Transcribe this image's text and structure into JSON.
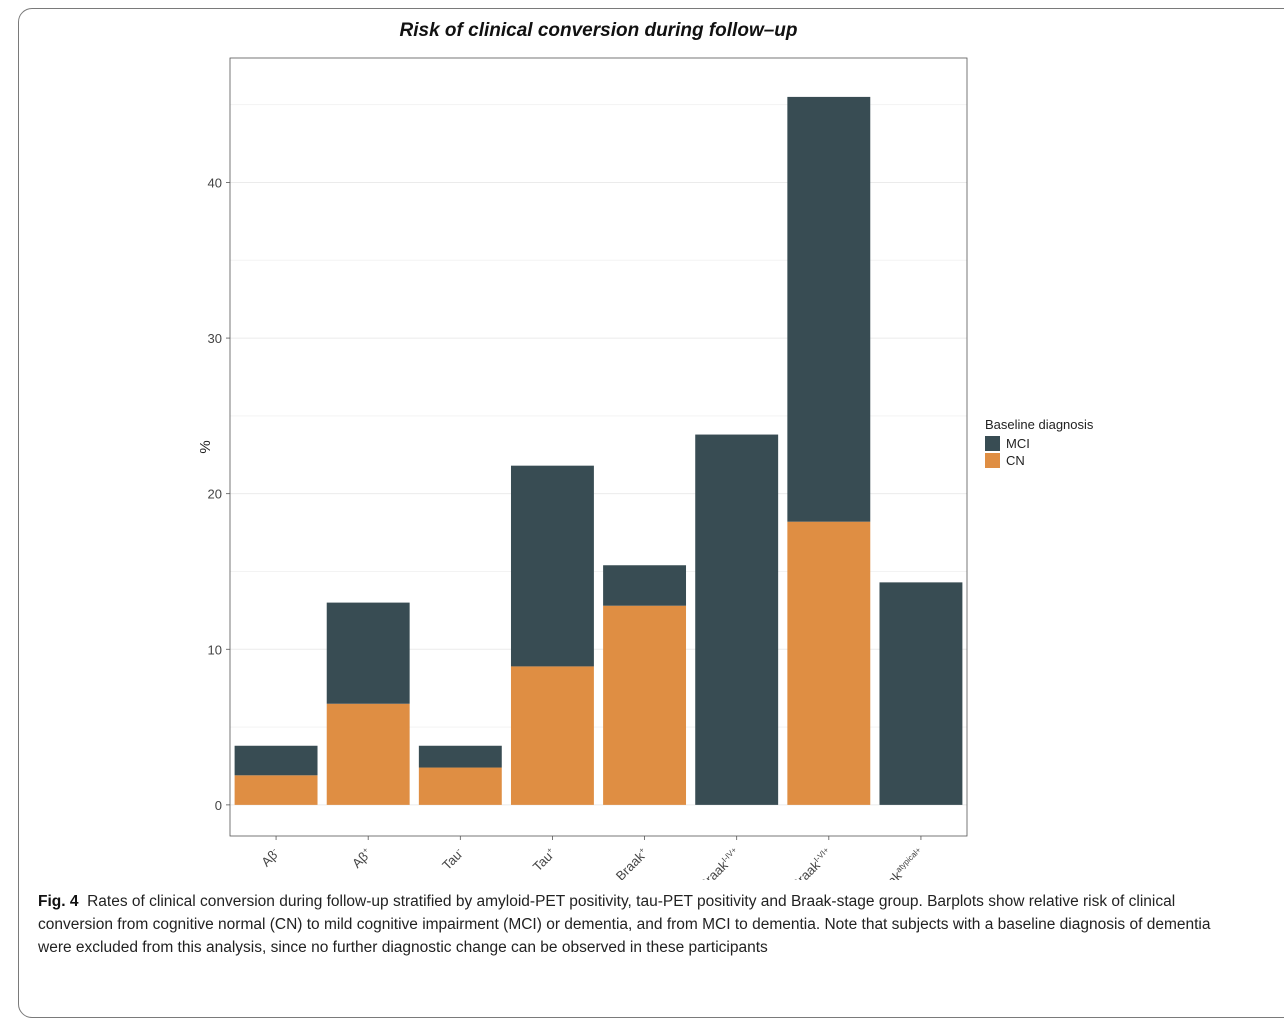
{
  "chart_data": {
    "type": "bar",
    "stacked": true,
    "title": "Risk of clinical conversion during follow–up",
    "xlabel": "",
    "ylabel": "%",
    "ylim": [
      -2,
      48
    ],
    "yticks": [
      0,
      10,
      20,
      30,
      40
    ],
    "grid": true,
    "legend_position": "right",
    "categories": [
      {
        "base": "Aβ",
        "sup": "-"
      },
      {
        "base": "Aβ",
        "sup": "+"
      },
      {
        "base": "Tau",
        "sup": "-"
      },
      {
        "base": "Tau",
        "sup": "+"
      },
      {
        "base": "Braak",
        "sup": "+"
      },
      {
        "base": "Braak",
        "sup": "I-IV+"
      },
      {
        "base": "Braak",
        "sup": "I-VI+"
      },
      {
        "base": "Braak",
        "sup": "atypical+"
      }
    ],
    "series": [
      {
        "name": "CN",
        "color": "#df8e43",
        "values": [
          1.9,
          6.5,
          2.4,
          8.9,
          12.8,
          0,
          18.2,
          0
        ]
      },
      {
        "name": "MCI",
        "color": "#384c53",
        "values": [
          1.9,
          6.5,
          1.4,
          12.9,
          2.6,
          23.8,
          27.3,
          14.3
        ]
      }
    ],
    "legend": {
      "title": "Baseline diagnosis",
      "items": [
        {
          "label": "MCI",
          "color": "#384c53"
        },
        {
          "label": "CN",
          "color": "#df8e43"
        }
      ]
    }
  },
  "caption": {
    "label": "Fig. 4",
    "text": "Rates of clinical conversion during follow-up stratified by amyloid-PET positivity, tau-PET positivity and Braak-stage group. Barplots show relative risk of clinical conversion from cognitive normal (CN) to mild cognitive impairment (MCI) or dementia, and from MCI to dementia. Note that subjects with a baseline diagnosis of dementia were excluded from this analysis, since no further diagnostic change can be observed in these participants"
  }
}
